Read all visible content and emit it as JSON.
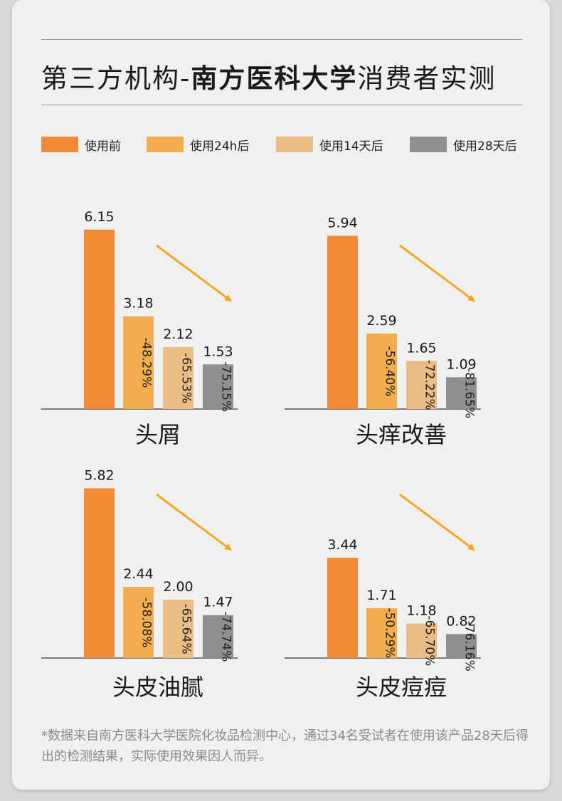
{
  "title": {
    "part1": "第三方机构-",
    "part2": "南方医科大学",
    "part3": "消费者实测"
  },
  "legend": [
    {
      "label": "使用前",
      "color": "#F08A35"
    },
    {
      "label": "使用24h后",
      "color": "#F2AE4E"
    },
    {
      "label": "使用14天后",
      "color": "#EBBC85"
    },
    {
      "label": "使用28天后",
      "color": "#8F8F8F"
    }
  ],
  "arrow_color": "#F5A623",
  "chart_data": [
    {
      "type": "bar",
      "title": "头屑",
      "categories": [
        "使用前",
        "使用24h后",
        "使用14天后",
        "使用28天后"
      ],
      "values": [
        6.15,
        3.18,
        2.12,
        1.53
      ],
      "value_labels": [
        "6.15",
        "3.18",
        "2.12",
        "1.53"
      ],
      "reduction_labels": [
        "",
        "-48.29%",
        "-65.53%",
        "-75.15%"
      ]
    },
    {
      "type": "bar",
      "title": "头痒改善",
      "categories": [
        "使用前",
        "使用24h后",
        "使用14天后",
        "使用28天后"
      ],
      "values": [
        5.94,
        2.59,
        1.65,
        1.09
      ],
      "value_labels": [
        "5.94",
        "2.59",
        "1.65",
        "1.09"
      ],
      "reduction_labels": [
        "",
        "-56.40%",
        "-72.22%",
        "-81.65%"
      ]
    },
    {
      "type": "bar",
      "title": "头皮油腻",
      "categories": [
        "使用前",
        "使用24h后",
        "使用14天后",
        "使用28天后"
      ],
      "values": [
        5.82,
        2.44,
        2.0,
        1.47
      ],
      "value_labels": [
        "5.82",
        "2.44",
        "2.00",
        "1.47"
      ],
      "reduction_labels": [
        "",
        "-58.08%",
        "-65.64%",
        "-74.74%"
      ]
    },
    {
      "type": "bar",
      "title": "头皮痘痘",
      "categories": [
        "使用前",
        "使用24h后",
        "使用14天后",
        "使用28天后"
      ],
      "values": [
        3.44,
        1.71,
        1.18,
        0.82
      ],
      "value_labels": [
        "3.44",
        "1.71",
        "1.18",
        "0.82"
      ],
      "reduction_labels": [
        "",
        "-50.29%",
        "-65.70%",
        "-76.16%"
      ]
    }
  ],
  "footnote": "*数据来自南方医科大学医院化妆品检测中心，通过34名受试者在使用该产品28天后得出的检测结果，实际使用效果因人而异。"
}
